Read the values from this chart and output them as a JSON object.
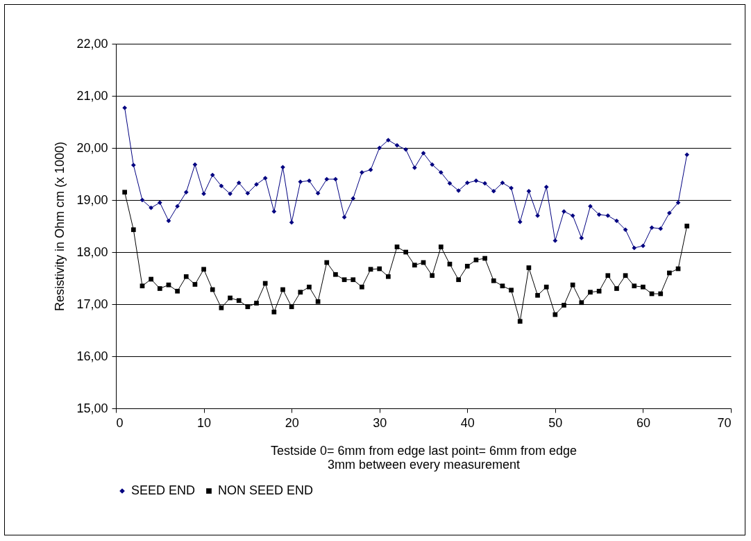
{
  "chart_data": {
    "type": "line",
    "xlabel": "Testside 0= 6mm from edge last point= 6mm from edge\n3mm between every measurement",
    "ylabel": "Resistivity in Ohm cm (x 1000)",
    "x": [
      1,
      2,
      3,
      4,
      5,
      6,
      7,
      8,
      9,
      10,
      11,
      12,
      13,
      14,
      15,
      16,
      17,
      18,
      19,
      20,
      21,
      22,
      23,
      24,
      25,
      26,
      27,
      28,
      29,
      30,
      31,
      32,
      33,
      34,
      35,
      36,
      37,
      38,
      39,
      40,
      41,
      42,
      43,
      44,
      45,
      46,
      47,
      48,
      49,
      50,
      51,
      52,
      53,
      54,
      55,
      56,
      57,
      58,
      59,
      60,
      61,
      62,
      63,
      64,
      65
    ],
    "series": [
      {
        "name": "SEED END",
        "color": "#000080",
        "marker": "diamond",
        "values": [
          20.77,
          19.67,
          19.0,
          18.85,
          18.95,
          18.6,
          18.88,
          19.15,
          19.68,
          19.12,
          19.48,
          19.27,
          19.12,
          19.33,
          19.13,
          19.3,
          19.42,
          18.78,
          19.63,
          18.57,
          19.35,
          19.37,
          19.13,
          19.4,
          19.4,
          18.67,
          19.03,
          19.53,
          19.58,
          20.0,
          20.15,
          20.05,
          19.97,
          19.62,
          19.9,
          19.68,
          19.53,
          19.32,
          19.18,
          19.33,
          19.37,
          19.32,
          19.17,
          19.33,
          19.23,
          18.58,
          19.17,
          18.7,
          19.25,
          18.22,
          18.78,
          18.7,
          18.27,
          18.88,
          18.72,
          18.7,
          18.6,
          18.43,
          18.08,
          18.12,
          18.47,
          18.45,
          18.75,
          18.95,
          19.87
        ]
      },
      {
        "name": "NON SEED END",
        "color": "#000000",
        "marker": "square",
        "values": [
          19.15,
          18.43,
          17.35,
          17.48,
          17.3,
          17.37,
          17.25,
          17.53,
          17.38,
          17.67,
          17.28,
          16.93,
          17.12,
          17.07,
          16.95,
          17.02,
          17.4,
          16.85,
          17.28,
          16.95,
          17.23,
          17.33,
          17.05,
          17.8,
          17.57,
          17.47,
          17.47,
          17.33,
          17.67,
          17.68,
          17.53,
          18.1,
          18.0,
          17.75,
          17.8,
          17.55,
          18.1,
          17.77,
          17.47,
          17.73,
          17.85,
          17.88,
          17.45,
          17.35,
          17.27,
          16.67,
          17.7,
          17.17,
          17.33,
          16.8,
          16.98,
          17.37,
          17.03,
          17.23,
          17.25,
          17.55,
          17.3,
          17.55,
          17.35,
          17.33,
          17.2,
          17.2,
          17.6,
          17.68,
          18.5
        ]
      }
    ],
    "xlim": [
      0,
      70
    ],
    "xticks": [
      0,
      10,
      20,
      30,
      40,
      50,
      60,
      70
    ],
    "ylim": [
      15,
      22
    ],
    "yticks": [
      {
        "value": 15,
        "label": "15,00"
      },
      {
        "value": 16,
        "label": "16,00"
      },
      {
        "value": 17,
        "label": "17,00"
      },
      {
        "value": 18,
        "label": "18,00"
      },
      {
        "value": 19,
        "label": "19,00"
      },
      {
        "value": 20,
        "label": "20,00"
      },
      {
        "value": 21,
        "label": "21,00"
      },
      {
        "value": 22,
        "label": "22,00"
      }
    ],
    "grid": "y",
    "legend": "bottom",
    "line_style": "solid"
  }
}
